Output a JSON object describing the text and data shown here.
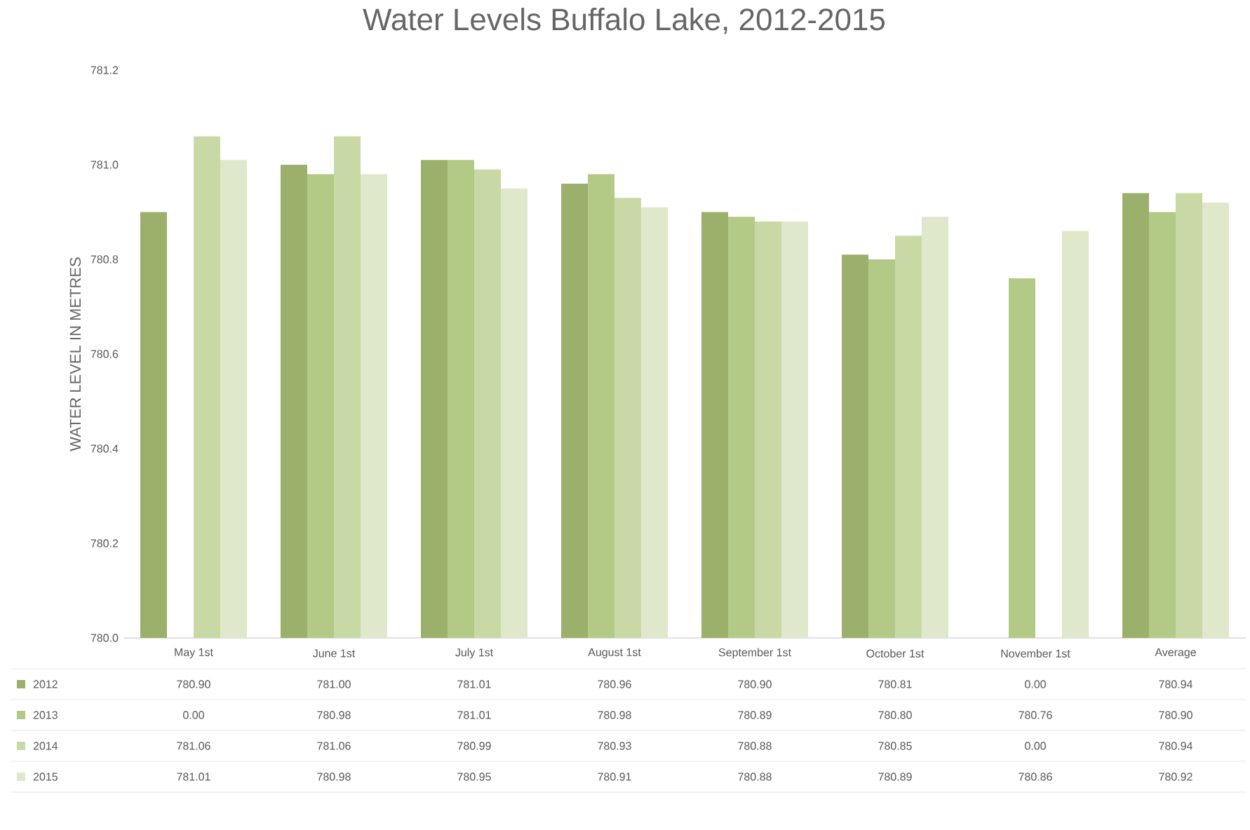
{
  "chart_data": {
    "type": "bar",
    "title": "Water Levels Buffalo Lake, 2012-2015",
    "ylabel": "WATER LEVEL IN METRES",
    "categories": [
      "May 1st",
      "June 1st",
      "July 1st",
      "August 1st",
      "September 1st",
      "October 1st",
      "November 1st",
      "Average"
    ],
    "series": [
      {
        "name": "2012",
        "color": "#9bb06a",
        "values": [
          780.9,
          781.0,
          781.01,
          780.96,
          780.9,
          780.81,
          null,
          780.94
        ],
        "value_labels": [
          "780.90",
          "781.00",
          "781.01",
          "780.96",
          "780.90",
          "780.81",
          "0.00",
          "780.94"
        ]
      },
      {
        "name": "2013",
        "color": "#b3c986",
        "values": [
          null,
          780.98,
          781.01,
          780.98,
          780.89,
          780.8,
          780.76,
          780.9
        ],
        "value_labels": [
          "0.00",
          "780.98",
          "781.01",
          "780.98",
          "780.89",
          "780.80",
          "780.76",
          "780.90"
        ]
      },
      {
        "name": "2014",
        "color": "#c9d9a6",
        "values": [
          781.06,
          781.06,
          780.99,
          780.93,
          780.88,
          780.85,
          null,
          780.94
        ],
        "value_labels": [
          "781.06",
          "781.06",
          "780.99",
          "780.93",
          "780.88",
          "780.85",
          "0.00",
          "780.94"
        ]
      },
      {
        "name": "2015",
        "color": "#dfe8cb",
        "values": [
          781.01,
          780.98,
          780.95,
          780.91,
          780.88,
          780.89,
          780.86,
          780.92
        ],
        "value_labels": [
          "781.01",
          "780.98",
          "780.95",
          "780.91",
          "780.88",
          "780.89",
          "780.86",
          "780.92"
        ]
      }
    ],
    "ylim": [
      780.0,
      781.2
    ],
    "yticks": [
      {
        "value": 780.0,
        "label": "780.0"
      },
      {
        "value": 780.2,
        "label": "780.2"
      },
      {
        "value": 780.4,
        "label": "780.4"
      },
      {
        "value": 780.6,
        "label": "780.6"
      },
      {
        "value": 780.8,
        "label": "780.8"
      },
      {
        "value": 781.0,
        "label": "781.0"
      },
      {
        "value": 781.2,
        "label": "781.2"
      }
    ],
    "legend": "bottom left"
  }
}
